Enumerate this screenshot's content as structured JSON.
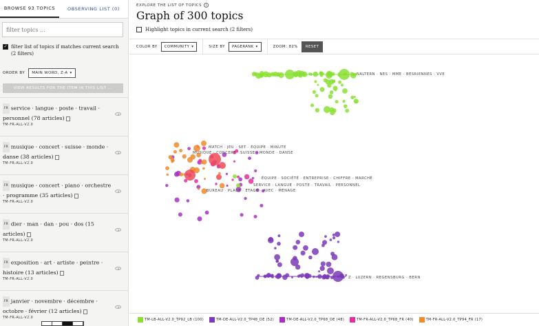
{
  "tabs": {
    "browse": "Browse 93 topics",
    "observing": "Observing list (0)"
  },
  "filter": {
    "placeholder": "filter topics ...",
    "value": ""
  },
  "filter_checkbox": {
    "checked": true,
    "label": "filter list of topics if matches current search (2 filters)"
  },
  "order": {
    "label": "ORDER BY",
    "value": "MAIN WORD, Z-A"
  },
  "view_button": "VIEW RESULTS FOR THE ITEM IN THIS LIST ...",
  "topics": [
    {
      "lang": "FR",
      "text": "service · langue · poste · travail · personnel (78 articles)",
      "model": "TM-FR-ALL-V2.0"
    },
    {
      "lang": "FR",
      "text": "musique · concert · suisse · monde · danse (38 articles)",
      "model": "TM-FR-ALL-V2.0"
    },
    {
      "lang": "FR",
      "text": "musique · concert · piano · orchestre · programme (35 articles)",
      "model": "TM-FR-ALL-V2.0"
    },
    {
      "lang": "FR",
      "text": "dier · man · dan · pou · dos (15 articles)",
      "model": "TM-FR-ALL-V2.0"
    },
    {
      "lang": "FR",
      "text": "exposition · art · artiste · peintre · histoire (13 articles)",
      "model": "TM-FR-ALL-V2.0"
    },
    {
      "lang": "FR",
      "text": "janvier · novembre · décembre · octobre · février (12 articles)",
      "model": "TM-FR-ALL-V2.0"
    }
  ],
  "header": {
    "explore": "EXPLORE THE LIST OF TOPICS",
    "title": "Graph of 300 topics",
    "highlight_label": "Highlight topics in current search (2 filters)",
    "highlight_checked": false
  },
  "controls": {
    "color_label": "COLOR BY",
    "color_value": "COMMUNITY",
    "size_label": "SIZE BY",
    "size_value": "PAGERANK",
    "zoom_text": "ZOOM: 82%",
    "reset_label": "RESET"
  },
  "graph_labels": [
    "NALTERN · NES · MME · BESRIENNES · VVE",
    "MATCH · JEU · SET · ÉQUIPE · MINUTE",
    "MUSIQUE · CONCERT · SUISSE · MONDE · DANSE",
    "ÉQUIPE · SOCIÉTÉ · ENTREPRISE · CHIFFRE · MARCHÉ",
    "SERVICE · LANGUE · POSTE · TRAVAIL · PERSONNEL",
    "BUREAU · PLACE · ÉTAGE · AVEC · MÉNAGE",
    "Z · LUZERN · REGENSBURG · BERN"
  ],
  "legend": [
    {
      "label": "TM-LB-ALL-V2.0_TP92_LB (100)",
      "color": "#88e033"
    },
    {
      "label": "TM-DE-ALL-V2.0_TP48_DE (52)",
      "color": "#7b3ab8"
    },
    {
      "label": "TM-DE-ALL-V2.0_TP68_DE (48)",
      "color": "#a531c4"
    },
    {
      "label": "TM-FR-ALL-V2.0_TP68_FR (40)",
      "color": "#e02f9e"
    },
    {
      "label": "TM-FR-ALL-V2.0_TP94_FR (17)",
      "color": "#f08a2b"
    }
  ],
  "colors": {
    "green": "#88e033",
    "purple": "#7b3ab8",
    "violet": "#a531c4",
    "magenta": "#e02f9e",
    "orange": "#f08a2b",
    "red": "#f04a55"
  },
  "icons": {
    "info": "info-icon",
    "eye": "eye-icon",
    "chevron": "chevron-down-icon",
    "document": "document-icon"
  }
}
